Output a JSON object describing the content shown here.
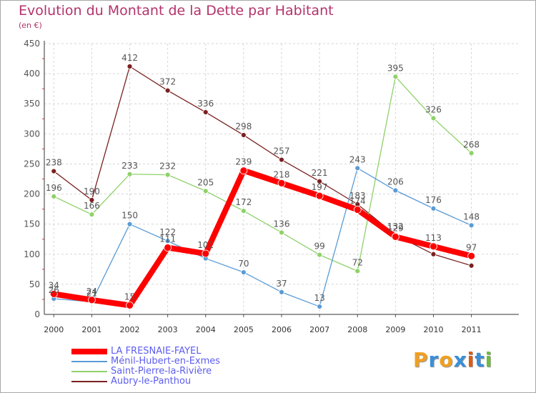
{
  "title": "Evolution du Montant de la Dette par Habitant",
  "subtitle": "(en €)",
  "logo": {
    "text": "Proxiti",
    "colors": [
      "#f0a020",
      "#3a8fd8",
      "#f0a020",
      "#3a8fd8",
      "#e05a10",
      "#3a8fd8",
      "#6cbf3a"
    ]
  },
  "chart_data": {
    "type": "line",
    "x": [
      "2000",
      "2001",
      "2002",
      "2003",
      "2004",
      "2005",
      "2006",
      "2007",
      "2008",
      "2009",
      "2010",
      "2011"
    ],
    "ylim": [
      0,
      450
    ],
    "yticks": [
      "0",
      "50",
      "100",
      "150",
      "200",
      "250",
      "300",
      "350",
      "400",
      "450"
    ],
    "grid": true,
    "legend_position": "bottom-left",
    "series": [
      {
        "name": "LA FRESNAIE-FAYEL",
        "color": "#ff0000",
        "values": [
          34,
          24,
          15,
          111,
          101,
          239,
          218,
          197,
          174,
          129,
          113,
          97
        ],
        "labels": [
          "34",
          "24",
          "15",
          "111",
          "101",
          "239",
          "218",
          "197",
          "174",
          "129",
          "113",
          "97"
        ]
      },
      {
        "name": "Ménil-Hubert-en-Exmes",
        "color": "#5a9bd5",
        "values": [
          26,
          21,
          150,
          122,
          93,
          70,
          37,
          13,
          243,
          206,
          176,
          148
        ],
        "labels": [
          "26",
          "21",
          "150",
          "122",
          "",
          "70",
          "37",
          "13",
          "243",
          "206",
          "176",
          "148"
        ]
      },
      {
        "name": "Saint-Pierre-la-Rivière",
        "color": "#8fd16a",
        "values": [
          196,
          166,
          233,
          232,
          205,
          172,
          136,
          99,
          72,
          395,
          326,
          268
        ],
        "labels": [
          "196",
          "166",
          "233",
          "232",
          "205",
          "172",
          "136",
          "99",
          "72",
          "395",
          "326",
          "268"
        ]
      },
      {
        "name": "Aubry-le-Panthou",
        "color": "#7a2020",
        "values": [
          238,
          190,
          412,
          372,
          336,
          298,
          257,
          221,
          183,
          132,
          100,
          81
        ],
        "labels": [
          "238",
          "190",
          "412",
          "372",
          "336",
          "298",
          "257",
          "221",
          "183",
          "132",
          "",
          ""
        ]
      }
    ]
  }
}
